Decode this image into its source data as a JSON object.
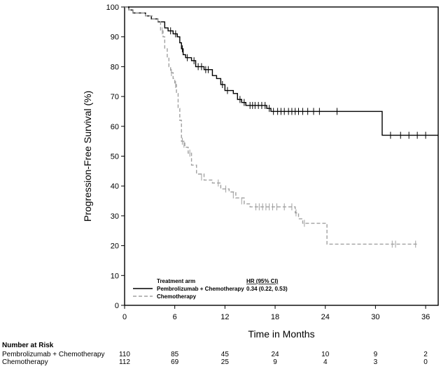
{
  "chart_data": {
    "type": "line",
    "subtype": "kaplan-meier",
    "title": "",
    "xlabel": "Time in Months",
    "ylabel": "Progression-Free Survival (%)",
    "xlim": [
      0,
      37.5
    ],
    "ylim": [
      0,
      100
    ],
    "xticks": [
      "0",
      "6",
      "12",
      "18",
      "24",
      "30",
      "36"
    ],
    "yticks": [
      "0",
      "10",
      "20",
      "30",
      "40",
      "50",
      "60",
      "70",
      "80",
      "90",
      "100"
    ],
    "legend": {
      "header": "Treatment arm",
      "hr_header": "HR (95% CI)",
      "placement": "bottom-left"
    },
    "series": [
      {
        "name": "Pembrolizumab + Chemotherapy",
        "hr": "0.34 (0.22, 0.53)",
        "style": "solid",
        "color": "#000000",
        "steps": [
          [
            0,
            100
          ],
          [
            0.5,
            99
          ],
          [
            1,
            98
          ],
          [
            2.5,
            97
          ],
          [
            3.2,
            96
          ],
          [
            4,
            95
          ],
          [
            4.8,
            93
          ],
          [
            5.2,
            92
          ],
          [
            5.8,
            91
          ],
          [
            6.3,
            90
          ],
          [
            6.6,
            88
          ],
          [
            6.8,
            86
          ],
          [
            7,
            84
          ],
          [
            7.3,
            83
          ],
          [
            8,
            82
          ],
          [
            8.5,
            80
          ],
          [
            9.5,
            79
          ],
          [
            10.5,
            77
          ],
          [
            11,
            76
          ],
          [
            11.5,
            74
          ],
          [
            12,
            72
          ],
          [
            13,
            71
          ],
          [
            13.5,
            69
          ],
          [
            14,
            68
          ],
          [
            14.5,
            67
          ],
          [
            17,
            66
          ],
          [
            17.5,
            65
          ],
          [
            30.5,
            65
          ],
          [
            30.8,
            57
          ],
          [
            37.5,
            57
          ]
        ],
        "censors": [
          [
            5.5,
            92
          ],
          [
            6.1,
            91
          ],
          [
            6.9,
            86
          ],
          [
            7.5,
            83
          ],
          [
            8.3,
            82
          ],
          [
            8.8,
            80
          ],
          [
            9.2,
            80
          ],
          [
            9.7,
            79
          ],
          [
            10,
            79
          ],
          [
            11.7,
            74
          ],
          [
            12.3,
            72
          ],
          [
            13.8,
            69
          ],
          [
            14.3,
            68
          ],
          [
            15,
            67
          ],
          [
            15.3,
            67
          ],
          [
            15.6,
            67
          ],
          [
            16,
            67
          ],
          [
            16.4,
            67
          ],
          [
            16.8,
            67
          ],
          [
            17.3,
            66
          ],
          [
            17.8,
            65
          ],
          [
            18.3,
            65
          ],
          [
            18.7,
            65
          ],
          [
            19.1,
            65
          ],
          [
            19.6,
            65
          ],
          [
            20,
            65
          ],
          [
            20.4,
            65
          ],
          [
            20.8,
            65
          ],
          [
            21.3,
            65
          ],
          [
            21.9,
            65
          ],
          [
            22.6,
            65
          ],
          [
            23.3,
            65
          ],
          [
            25.4,
            65
          ],
          [
            31.8,
            57
          ],
          [
            33,
            57
          ],
          [
            34,
            57
          ],
          [
            35,
            57
          ],
          [
            36,
            57
          ]
        ]
      },
      {
        "name": "Chemotherapy",
        "style": "dashed",
        "color": "#a0a0a0",
        "steps": [
          [
            0,
            100
          ],
          [
            0.5,
            99
          ],
          [
            1,
            98
          ],
          [
            2.5,
            97
          ],
          [
            3.3,
            96
          ],
          [
            4,
            95
          ],
          [
            4.3,
            92
          ],
          [
            4.6,
            90
          ],
          [
            4.8,
            86
          ],
          [
            5.1,
            83
          ],
          [
            5.3,
            80
          ],
          [
            5.5,
            78
          ],
          [
            5.8,
            76
          ],
          [
            6,
            74
          ],
          [
            6.2,
            71
          ],
          [
            6.4,
            66
          ],
          [
            6.6,
            62
          ],
          [
            6.8,
            55
          ],
          [
            7.2,
            53
          ],
          [
            7.6,
            51
          ],
          [
            8,
            47
          ],
          [
            8.6,
            44
          ],
          [
            9.5,
            42
          ],
          [
            10.5,
            41
          ],
          [
            11.5,
            39
          ],
          [
            12.5,
            38
          ],
          [
            13.3,
            36
          ],
          [
            14.3,
            34
          ],
          [
            15,
            33
          ],
          [
            20.4,
            31
          ],
          [
            20.8,
            29
          ],
          [
            21.3,
            27.5
          ],
          [
            24.2,
            20.5
          ],
          [
            35,
            20.5
          ]
        ],
        "censors": [
          [
            4.5,
            92
          ],
          [
            5.6,
            78
          ],
          [
            6.1,
            74
          ],
          [
            6.9,
            55
          ],
          [
            7.1,
            54
          ],
          [
            7.8,
            51
          ],
          [
            9.2,
            43
          ],
          [
            11.2,
            41
          ],
          [
            12.1,
            39
          ],
          [
            13,
            37
          ],
          [
            14,
            35
          ],
          [
            15.7,
            33
          ],
          [
            16.1,
            33
          ],
          [
            16.5,
            33
          ],
          [
            16.9,
            33
          ],
          [
            17.3,
            33
          ],
          [
            17.7,
            33
          ],
          [
            18.2,
            33
          ],
          [
            19.1,
            33
          ],
          [
            20,
            33
          ],
          [
            20.5,
            31
          ],
          [
            21.5,
            27.5
          ],
          [
            32,
            20.5
          ],
          [
            32.4,
            20.5
          ],
          [
            34.8,
            20.5
          ]
        ]
      }
    ],
    "risk_table": {
      "header": "Number at Risk",
      "rows": [
        {
          "label": "Pembrolizumab + Chemotherapy",
          "values": [
            "110",
            "85",
            "45",
            "24",
            "10",
            "9",
            "2"
          ]
        },
        {
          "label": "Chemotherapy",
          "values": [
            "112",
            "69",
            "25",
            "9",
            "4",
            "3",
            "0"
          ]
        }
      ]
    }
  }
}
